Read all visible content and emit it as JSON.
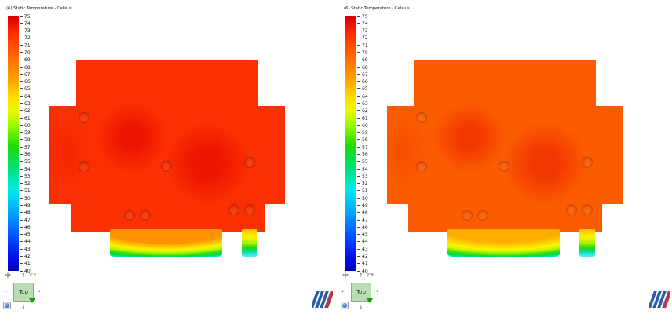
{
  "legend": {
    "title": "(6) Static Temperature - Celsius",
    "max": 75,
    "min": 40,
    "ticks": [
      75,
      74,
      73,
      72,
      71,
      70,
      69,
      68,
      67,
      66,
      65,
      64,
      63,
      62,
      61,
      60,
      59,
      58,
      57,
      56,
      55,
      54,
      53,
      52,
      51,
      50,
      49,
      48,
      47,
      46,
      45,
      44,
      43,
      42,
      41,
      40
    ],
    "gradient": [
      "#d80000 0%",
      "#ff2e00 7%",
      "#ff6a00 16%",
      "#ffa300 25%",
      "#ffdf00 32%",
      "#eef800 37%",
      "#94fb00 43%",
      "#1cdc00 51%",
      "#00e06e 59%",
      "#00ebeb 68%",
      "#00a6ff 77%",
      "#0053ff 86%",
      "#0013f0 94%",
      "#0000bb 100%"
    ]
  },
  "widget": {
    "up": "↑",
    "down": "↓",
    "left": "←",
    "right": "→",
    "rotate_symbol": "↷",
    "axis": "z"
  },
  "logo": {
    "stripes": [
      "#2b5dad",
      "#2b5dad",
      "#2b5dad",
      "#b0394a"
    ]
  },
  "panels": [
    {
      "name": "left-result",
      "view_cube_label": "Top",
      "colors": {
        "body": "#fa3000",
        "blob": "#ee1400",
        "rim": "#c22600"
      },
      "band_gradient": [
        "#ff9200 52%",
        "#ffc800 62%",
        "#fff200 70%",
        "#b0f600 78%",
        "#3ee000 84%",
        "#00d84a 89%",
        "#00e0a8 94%",
        "#44ecec 100%"
      ],
      "strip_gradient": [
        "#ffc400 0%",
        "#fff200 28%",
        "#a0f200 50%",
        "#2cd800 66%",
        "#00dc90 80%",
        "#3ce8ee 92%",
        "#55eef2 100%"
      ]
    },
    {
      "name": "right-result",
      "view_cube_label": "Top",
      "colors": {
        "body": "#fb5c00",
        "blob": "#f23600",
        "rim": "#cc4a00"
      },
      "band_gradient": [
        "#ffae00 50%",
        "#ffd400 60%",
        "#fff200 69%",
        "#b0f600 77%",
        "#3ee000 84%",
        "#00d84a 89%",
        "#00e0a8 94%",
        "#44ecec 100%"
      ],
      "strip_gradient": [
        "#ffc400 0%",
        "#fff200 28%",
        "#a0f200 50%",
        "#2cd800 66%",
        "#00dc90 80%",
        "#3ce8ee 92%",
        "#55eef2 100%"
      ]
    }
  ]
}
